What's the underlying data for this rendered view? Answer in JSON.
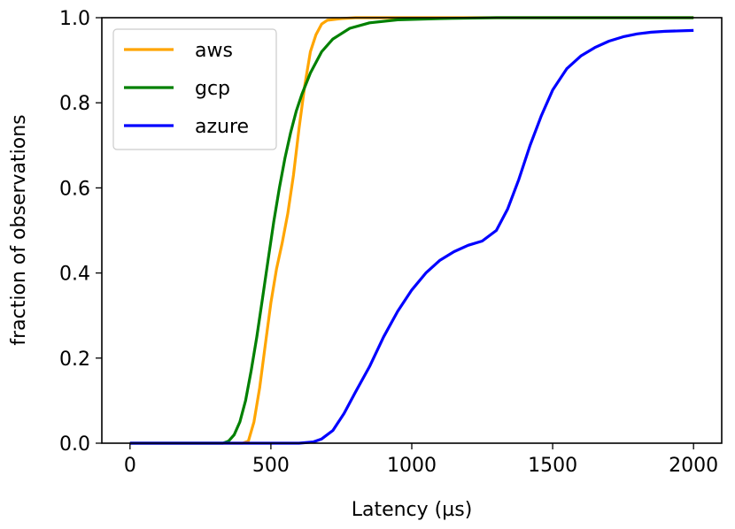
{
  "chart_data": {
    "type": "line",
    "title": "",
    "xlabel": "Latency (µs)",
    "ylabel": "fraction of observations",
    "xlim": [
      -100,
      2100
    ],
    "ylim": [
      0,
      1
    ],
    "x_ticks": [
      0,
      500,
      1000,
      1500,
      2000
    ],
    "y_ticks": [
      0.0,
      0.2,
      0.4,
      0.6,
      0.8,
      1.0
    ],
    "x_tick_labels": [
      "0",
      "500",
      "1000",
      "1500",
      "2000"
    ],
    "y_tick_labels": [
      "0.0",
      "0.2",
      "0.4",
      "0.6",
      "0.8",
      "1.0"
    ],
    "grid": false,
    "legend_position": "top-left",
    "series": [
      {
        "name": "aws",
        "color": "#FFA500",
        "points": [
          [
            0,
            0
          ],
          [
            400,
            0
          ],
          [
            420,
            0.005
          ],
          [
            440,
            0.05
          ],
          [
            460,
            0.13
          ],
          [
            480,
            0.23
          ],
          [
            500,
            0.33
          ],
          [
            520,
            0.41
          ],
          [
            540,
            0.47
          ],
          [
            560,
            0.54
          ],
          [
            580,
            0.63
          ],
          [
            600,
            0.74
          ],
          [
            620,
            0.84
          ],
          [
            640,
            0.92
          ],
          [
            660,
            0.96
          ],
          [
            680,
            0.985
          ],
          [
            700,
            0.994
          ],
          [
            750,
            0.998
          ],
          [
            800,
            1.0
          ],
          [
            2000,
            1.0
          ]
        ]
      },
      {
        "name": "gcp",
        "color": "#008000",
        "points": [
          [
            0,
            0
          ],
          [
            330,
            0
          ],
          [
            350,
            0.005
          ],
          [
            370,
            0.02
          ],
          [
            390,
            0.05
          ],
          [
            410,
            0.1
          ],
          [
            430,
            0.17
          ],
          [
            450,
            0.25
          ],
          [
            470,
            0.34
          ],
          [
            490,
            0.43
          ],
          [
            510,
            0.52
          ],
          [
            530,
            0.6
          ],
          [
            550,
            0.67
          ],
          [
            570,
            0.73
          ],
          [
            590,
            0.78
          ],
          [
            610,
            0.82
          ],
          [
            640,
            0.87
          ],
          [
            680,
            0.92
          ],
          [
            720,
            0.95
          ],
          [
            780,
            0.975
          ],
          [
            850,
            0.988
          ],
          [
            950,
            0.995
          ],
          [
            1100,
            0.998
          ],
          [
            1300,
            1.0
          ],
          [
            2000,
            1.0
          ]
        ]
      },
      {
        "name": "azure",
        "color": "#0000FF",
        "points": [
          [
            0,
            0
          ],
          [
            600,
            0
          ],
          [
            650,
            0.003
          ],
          [
            680,
            0.01
          ],
          [
            720,
            0.03
          ],
          [
            760,
            0.07
          ],
          [
            800,
            0.12
          ],
          [
            850,
            0.18
          ],
          [
            900,
            0.25
          ],
          [
            950,
            0.31
          ],
          [
            1000,
            0.36
          ],
          [
            1050,
            0.4
          ],
          [
            1100,
            0.43
          ],
          [
            1150,
            0.45
          ],
          [
            1200,
            0.465
          ],
          [
            1250,
            0.475
          ],
          [
            1300,
            0.5
          ],
          [
            1340,
            0.55
          ],
          [
            1380,
            0.62
          ],
          [
            1420,
            0.7
          ],
          [
            1460,
            0.77
          ],
          [
            1500,
            0.83
          ],
          [
            1550,
            0.88
          ],
          [
            1600,
            0.91
          ],
          [
            1650,
            0.93
          ],
          [
            1700,
            0.945
          ],
          [
            1750,
            0.955
          ],
          [
            1800,
            0.962
          ],
          [
            1850,
            0.966
          ],
          [
            1900,
            0.968
          ],
          [
            2000,
            0.97
          ]
        ]
      }
    ]
  }
}
